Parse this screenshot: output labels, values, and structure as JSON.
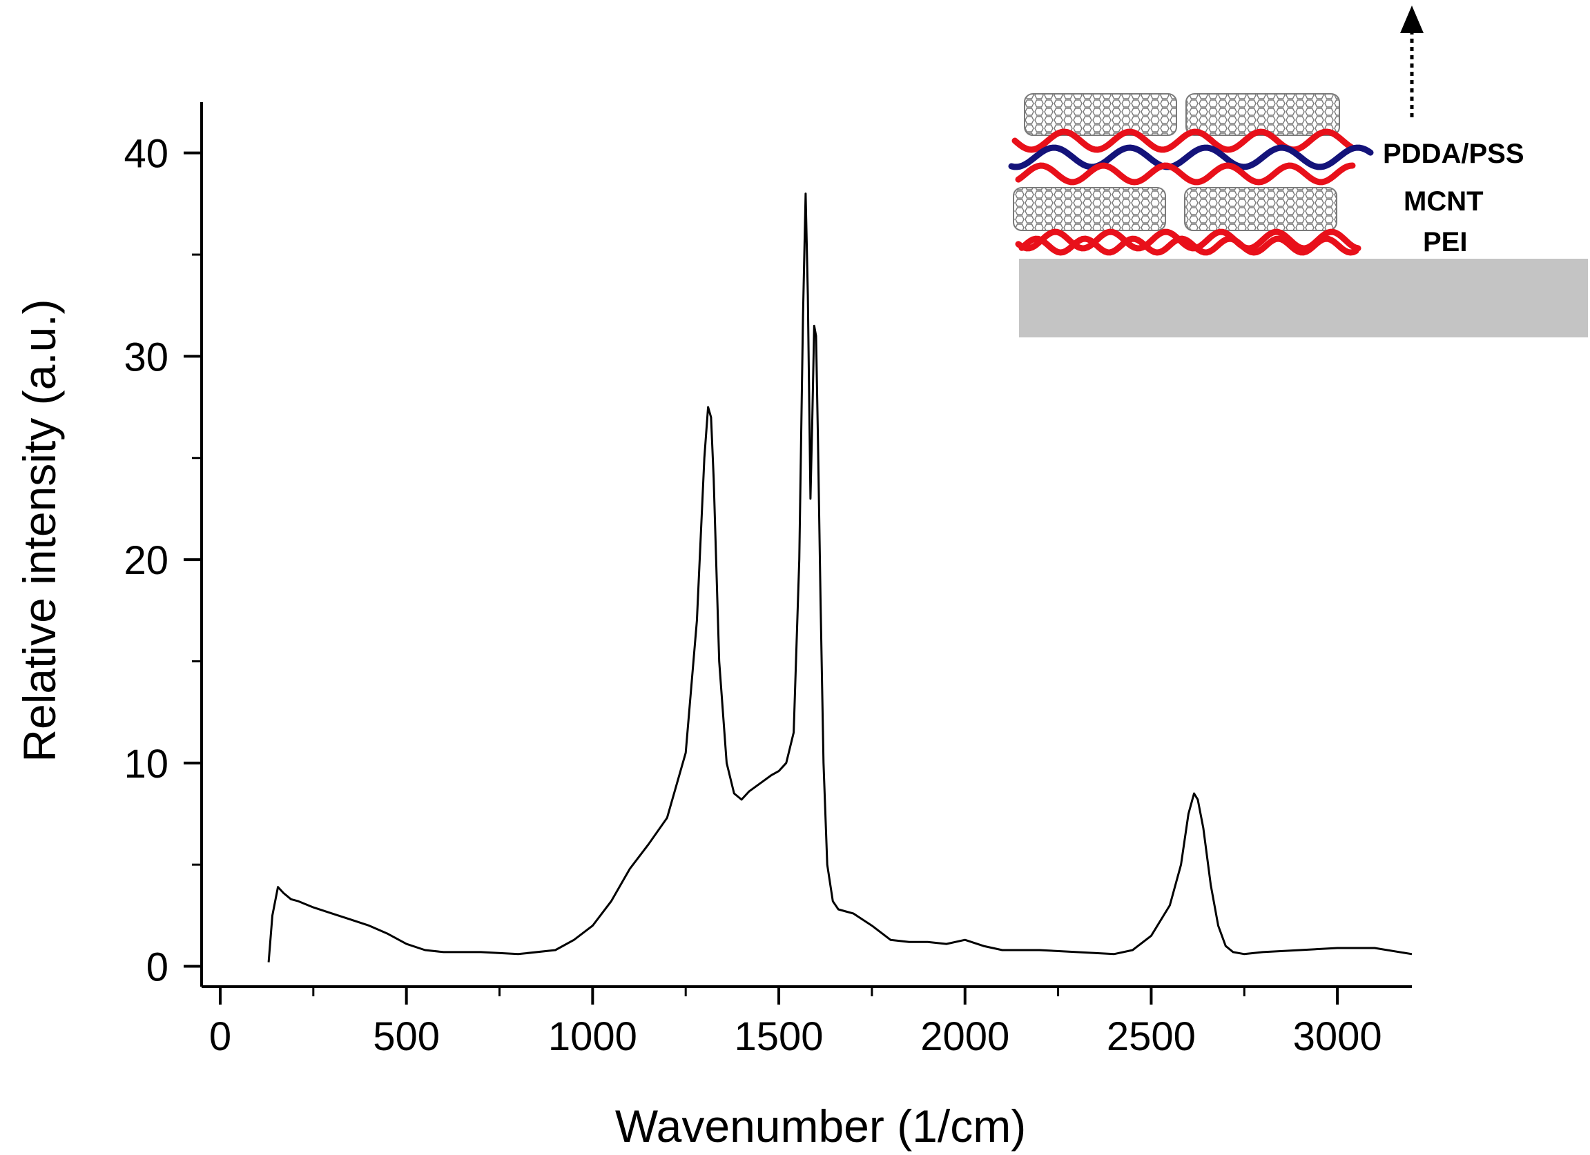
{
  "chart_data": {
    "type": "line",
    "xlabel": "Wavenumber (1/cm)",
    "ylabel": "Relative intensity (a.u.)",
    "xlim": [
      -50,
      3200
    ],
    "ylim": [
      -1,
      42.5
    ],
    "xticks": [
      0,
      500,
      1000,
      1500,
      2000,
      2500,
      3000
    ],
    "yticks": [
      0,
      10,
      20,
      30,
      40
    ],
    "grid": false,
    "series": [
      {
        "color": "#000000",
        "x": [
          130,
          140,
          155,
          170,
          190,
          210,
          250,
          300,
          350,
          400,
          450,
          500,
          550,
          600,
          700,
          800,
          900,
          950,
          1000,
          1050,
          1100,
          1150,
          1200,
          1250,
          1280,
          1300,
          1310,
          1318,
          1325,
          1340,
          1360,
          1380,
          1400,
          1420,
          1450,
          1480,
          1500,
          1520,
          1540,
          1555,
          1565,
          1572,
          1578,
          1585,
          1590,
          1595,
          1600,
          1605,
          1612,
          1620,
          1630,
          1645,
          1660,
          1680,
          1700,
          1750,
          1800,
          1850,
          1900,
          1950,
          2000,
          2050,
          2100,
          2200,
          2300,
          2400,
          2450,
          2500,
          2550,
          2580,
          2600,
          2615,
          2625,
          2640,
          2660,
          2680,
          2700,
          2720,
          2750,
          2800,
          2900,
          3000,
          3100,
          3200
        ],
        "y": [
          0.2,
          2.5,
          3.9,
          3.6,
          3.3,
          3.2,
          2.9,
          2.6,
          2.3,
          2.0,
          1.6,
          1.1,
          0.8,
          0.7,
          0.7,
          0.6,
          0.8,
          1.3,
          2.0,
          3.2,
          4.8,
          6.0,
          7.3,
          10.5,
          17.0,
          25.0,
          27.5,
          27.0,
          24.0,
          15.0,
          10.0,
          8.5,
          8.2,
          8.6,
          9.0,
          9.4,
          9.6,
          10.0,
          11.5,
          20.0,
          32.0,
          38.0,
          33.0,
          23.0,
          27.0,
          31.5,
          31.0,
          26.0,
          18.0,
          10.0,
          5.0,
          3.2,
          2.8,
          2.7,
          2.6,
          2.0,
          1.3,
          1.2,
          1.2,
          1.1,
          1.3,
          1.0,
          0.8,
          0.8,
          0.7,
          0.6,
          0.8,
          1.5,
          3.0,
          5.0,
          7.5,
          8.5,
          8.2,
          6.8,
          4.0,
          2.0,
          1.0,
          0.7,
          0.6,
          0.7,
          0.8,
          0.9,
          0.9,
          0.6
        ]
      }
    ]
  },
  "inset": {
    "labels": [
      "PDDA/PSS",
      "MCNT",
      "PEI"
    ],
    "colors": {
      "pdda": "#e8101a",
      "pss": "#14137a",
      "pei": "#e8101a",
      "cnt": "#7a7a7a",
      "substrate": "#c4c4c4"
    }
  }
}
